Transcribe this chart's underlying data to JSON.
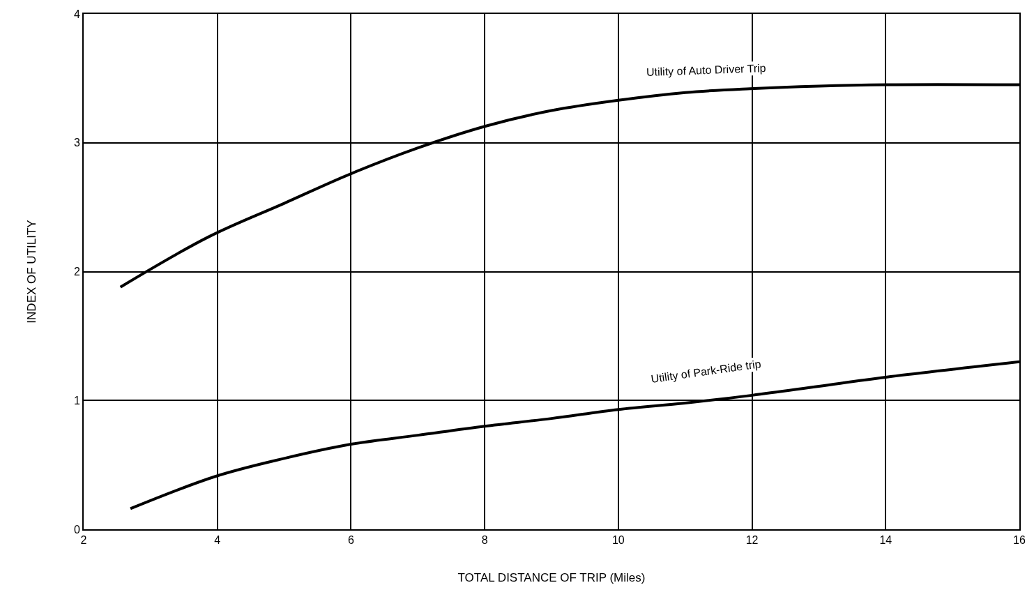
{
  "chart_data": {
    "type": "line",
    "xlabel": "TOTAL DISTANCE OF TRIP (Miles)",
    "ylabel": "INDEX OF UTILITY",
    "xlim": [
      2,
      16
    ],
    "xticks": [
      2,
      4,
      6,
      8,
      10,
      12,
      14,
      16
    ],
    "ylim": [
      0,
      4
    ],
    "yticks": [
      0,
      1,
      2,
      3,
      4
    ],
    "grid": true,
    "marker": "none",
    "line_style": "solid",
    "series": [
      {
        "name": "Utility of Auto Driver Trip",
        "color": "#000000",
        "x": [
          2.55,
          3.87,
          5,
          6,
          7,
          8.02,
          9,
          10,
          11,
          11.97,
          13,
          14,
          16
        ],
        "values": [
          1.88,
          2.27,
          2.53,
          2.76,
          2.96,
          3.13,
          3.25,
          3.33,
          3.39,
          3.42,
          3.44,
          3.45,
          3.45
        ]
      },
      {
        "name": "Utility of Park-Ride trip",
        "color": "#000000",
        "x": [
          2.7,
          3.97,
          5,
          6,
          7,
          8,
          9,
          10,
          11,
          12,
          13,
          14,
          16
        ],
        "values": [
          0.16,
          0.41,
          0.55,
          0.66,
          0.73,
          0.8,
          0.86,
          0.93,
          0.98,
          1.04,
          1.11,
          1.18,
          1.3
        ]
      }
    ]
  }
}
